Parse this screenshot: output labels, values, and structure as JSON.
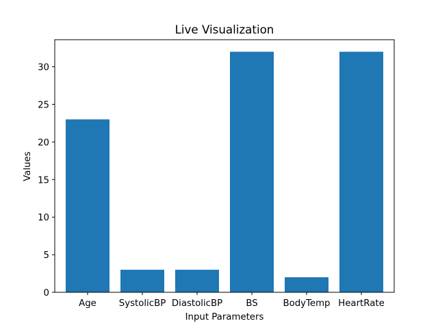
{
  "chart_data": {
    "type": "bar",
    "title": "Live Visualization",
    "xlabel": "Input Parameters",
    "ylabel": "Values",
    "categories": [
      "Age",
      "SystolicBP",
      "DiastolicBP",
      "BS",
      "BodyTemp",
      "HeartRate"
    ],
    "values": [
      23,
      3,
      3,
      32,
      2,
      32
    ],
    "ylim": [
      0,
      33.6
    ],
    "yticks": [
      0,
      5,
      10,
      15,
      20,
      25,
      30
    ],
    "grid": false,
    "bar_color": "#1f77b4"
  }
}
